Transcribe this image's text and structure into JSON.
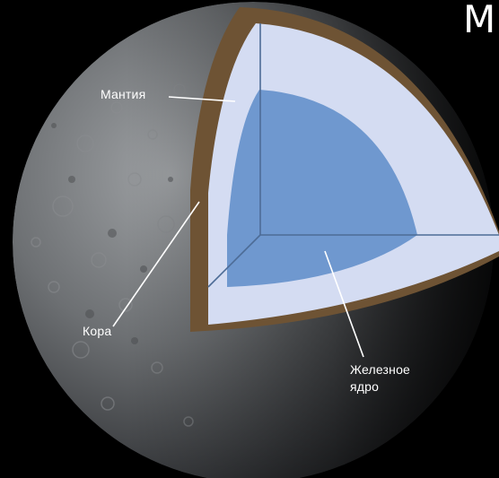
{
  "title_fragment": "M",
  "labels": {
    "mantle": "Мантия",
    "crust": "Кора",
    "core_line1": "Железное",
    "core_line2": "ядро"
  },
  "colors": {
    "background": "#000000",
    "crust": "#6e5334",
    "mantle": "#d4dcf2",
    "core": "#6f98cf",
    "surface": "#6a6c6e",
    "label_text": "#ffffff"
  }
}
